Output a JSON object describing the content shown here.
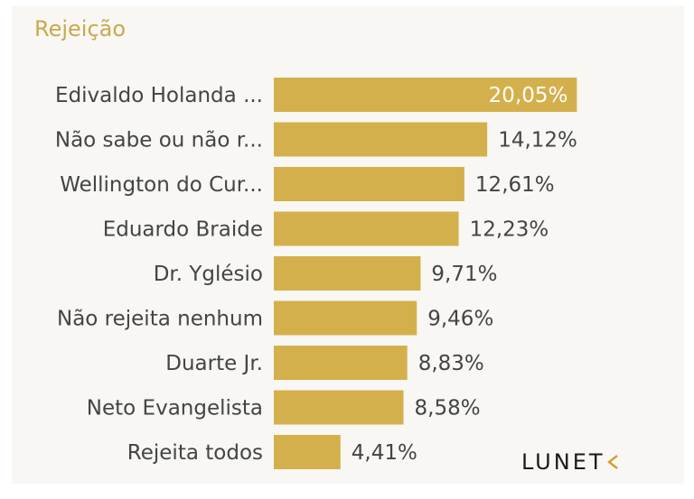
{
  "chart_data": {
    "type": "bar",
    "orientation": "horizontal",
    "title": "Rejeição",
    "categories": [
      "Edivaldo Holanda ...",
      "Não sabe ou não r...",
      "Wellington do Cur...",
      "Eduardo Braide",
      "Dr. Yglésio",
      "Não rejeita nenhum",
      "Duarte Jr.",
      "Neto Evangelista",
      "Rejeita todos"
    ],
    "values": [
      20.05,
      14.12,
      12.61,
      12.23,
      9.71,
      9.46,
      8.83,
      8.58,
      4.41
    ],
    "value_labels": [
      "20,05%",
      "14,12%",
      "12,61%",
      "12,23%",
      "9,71%",
      "9,46%",
      "8,83%",
      "8,58%",
      "4,41%"
    ],
    "xlim": [
      0,
      22
    ],
    "grid": false,
    "legend": "none",
    "colors": {
      "bar": "#d4b04c",
      "title": "#c9a94e",
      "text": "#444444",
      "background": "#f8f7f3"
    }
  },
  "brand": {
    "text": "LUNET",
    "icon": "chevron-left-icon"
  }
}
